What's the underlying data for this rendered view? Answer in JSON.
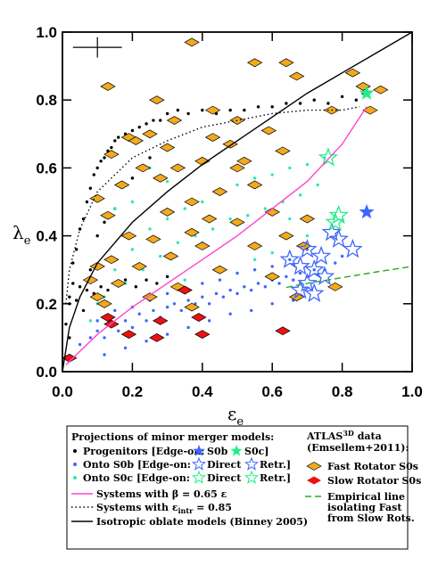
{
  "chart_data": {
    "type": "scatter",
    "xlabel": {
      "symbol": "ε",
      "subscript": "e"
    },
    "ylabel": {
      "symbol": "λ",
      "subscript": "e"
    },
    "xlim": [
      0,
      1
    ],
    "ylim": [
      0,
      1
    ],
    "xticks": [
      {
        "value": 0,
        "label": "0.0"
      },
      0.2,
      0.4,
      0.6,
      0.8,
      {
        "value": 1,
        "label": "1.0"
      }
    ],
    "yticks": [
      {
        "value": 0,
        "label": "0.0"
      },
      0.2,
      0.4,
      0.6,
      0.8,
      {
        "value": 1,
        "label": "1.0"
      }
    ],
    "error_cross": {
      "x": 0.1,
      "y": 0.955,
      "xerr": 0.07,
      "yerr": 0.03
    },
    "series": [
      {
        "marker": "dot",
        "color": "#000000",
        "x": [
          0.02,
          0.03,
          0.04,
          0.05,
          0.06,
          0.07,
          0.08,
          0.09,
          0.1,
          0.11,
          0.12,
          0.13,
          0.14,
          0.15,
          0.16,
          0.18,
          0.2,
          0.22,
          0.24,
          0.26,
          0.28,
          0.3,
          0.33,
          0.36,
          0.4,
          0.44,
          0.48,
          0.52,
          0.56,
          0.6,
          0.64,
          0.68,
          0.72,
          0.76,
          0.8,
          0.84,
          0.86,
          0.03,
          0.05,
          0.07,
          0.09,
          0.11,
          0.13,
          0.15,
          0.18,
          0.21,
          0.24,
          0.27,
          0.3,
          0.02,
          0.04,
          0.06,
          0.08,
          0.1,
          0.12,
          0.15,
          0.2,
          0.25,
          0.01,
          0.02
        ],
        "y": [
          0.2,
          0.32,
          0.36,
          0.42,
          0.45,
          0.5,
          0.54,
          0.58,
          0.6,
          0.62,
          0.63,
          0.65,
          0.66,
          0.68,
          0.69,
          0.7,
          0.71,
          0.72,
          0.73,
          0.74,
          0.74,
          0.76,
          0.77,
          0.76,
          0.77,
          0.76,
          0.77,
          0.77,
          0.78,
          0.78,
          0.79,
          0.79,
          0.8,
          0.79,
          0.81,
          0.8,
          0.82,
          0.26,
          0.25,
          0.24,
          0.23,
          0.25,
          0.24,
          0.26,
          0.27,
          0.25,
          0.27,
          0.26,
          0.28,
          0.22,
          0.21,
          0.18,
          0.3,
          0.4,
          0.44,
          0.48,
          0.57,
          0.63,
          0.14,
          0.1
        ]
      },
      {
        "marker": "dot",
        "color": "#3f66ff",
        "x": [
          0.05,
          0.08,
          0.1,
          0.12,
          0.14,
          0.16,
          0.18,
          0.2,
          0.22,
          0.24,
          0.26,
          0.28,
          0.3,
          0.32,
          0.34,
          0.36,
          0.38,
          0.4,
          0.42,
          0.44,
          0.46,
          0.48,
          0.5,
          0.52,
          0.54,
          0.56,
          0.58,
          0.6,
          0.62,
          0.64,
          0.66,
          0.68,
          0.7,
          0.72,
          0.75,
          0.78,
          0.8,
          0.1,
          0.15,
          0.2,
          0.25,
          0.3,
          0.35,
          0.4,
          0.45,
          0.5,
          0.55,
          0.6,
          0.65,
          0.7,
          0.12,
          0.18,
          0.24,
          0.3,
          0.36,
          0.42,
          0.48,
          0.54,
          0.6,
          0.66
        ],
        "y": [
          0.08,
          0.1,
          0.12,
          0.1,
          0.14,
          0.12,
          0.15,
          0.13,
          0.17,
          0.15,
          0.18,
          0.16,
          0.19,
          0.2,
          0.18,
          0.21,
          0.2,
          0.22,
          0.2,
          0.23,
          0.22,
          0.24,
          0.23,
          0.25,
          0.24,
          0.26,
          0.25,
          0.27,
          0.26,
          0.28,
          0.27,
          0.29,
          0.28,
          0.3,
          0.3,
          0.32,
          0.34,
          0.15,
          0.18,
          0.19,
          0.21,
          0.23,
          0.24,
          0.26,
          0.27,
          0.29,
          0.3,
          0.31,
          0.33,
          0.36,
          0.05,
          0.07,
          0.09,
          0.11,
          0.13,
          0.15,
          0.17,
          0.18,
          0.2,
          0.21
        ]
      },
      {
        "marker": "dot",
        "color": "#2ee8b0",
        "x": [
          0.12,
          0.15,
          0.18,
          0.2,
          0.23,
          0.25,
          0.28,
          0.3,
          0.33,
          0.35,
          0.38,
          0.4,
          0.43,
          0.45,
          0.48,
          0.5,
          0.53,
          0.55,
          0.58,
          0.6,
          0.63,
          0.65,
          0.68,
          0.7,
          0.73,
          0.75,
          0.2,
          0.3,
          0.4,
          0.5,
          0.6,
          0.7,
          0.25,
          0.35,
          0.45,
          0.55,
          0.65,
          0.08,
          0.1,
          0.15
        ],
        "y": [
          0.22,
          0.3,
          0.26,
          0.36,
          0.3,
          0.42,
          0.34,
          0.45,
          0.38,
          0.48,
          0.4,
          0.5,
          0.42,
          0.53,
          0.45,
          0.55,
          0.46,
          0.57,
          0.48,
          0.58,
          0.5,
          0.6,
          0.52,
          0.61,
          0.55,
          0.63,
          0.5,
          0.56,
          0.38,
          0.6,
          0.35,
          0.4,
          0.6,
          0.27,
          0.3,
          0.33,
          0.45,
          0.15,
          0.2,
          0.48
        ]
      },
      {
        "marker": "diamond",
        "color": "#f2a91c",
        "x": [
          0.37,
          0.55,
          0.64,
          0.67,
          0.83,
          0.86,
          0.91,
          0.88,
          0.13,
          0.27,
          0.32,
          0.5,
          0.43,
          0.19,
          0.25,
          0.21,
          0.3,
          0.43,
          0.48,
          0.59,
          0.77,
          0.14,
          0.23,
          0.33,
          0.4,
          0.52,
          0.63,
          0.5,
          0.28,
          0.17,
          0.1,
          0.13,
          0.3,
          0.37,
          0.42,
          0.45,
          0.55,
          0.6,
          0.7,
          0.5,
          0.37,
          0.26,
          0.19,
          0.14,
          0.22,
          0.1,
          0.08,
          0.16,
          0.31,
          0.4,
          0.55,
          0.64,
          0.69,
          0.33,
          0.45,
          0.6,
          0.67,
          0.78,
          0.12,
          0.25,
          0.37,
          0.1
        ],
        "y": [
          0.97,
          0.91,
          0.91,
          0.87,
          0.88,
          0.84,
          0.83,
          0.77,
          0.84,
          0.8,
          0.74,
          0.74,
          0.77,
          0.69,
          0.7,
          0.68,
          0.66,
          0.69,
          0.67,
          0.71,
          0.77,
          0.64,
          0.6,
          0.6,
          0.62,
          0.62,
          0.65,
          0.6,
          0.57,
          0.55,
          0.51,
          0.46,
          0.47,
          0.5,
          0.45,
          0.53,
          0.55,
          0.47,
          0.45,
          0.44,
          0.41,
          0.39,
          0.4,
          0.33,
          0.31,
          0.31,
          0.27,
          0.26,
          0.34,
          0.37,
          0.37,
          0.4,
          0.37,
          0.25,
          0.3,
          0.28,
          0.22,
          0.25,
          0.2,
          0.22,
          0.19,
          0.22
        ]
      },
      {
        "marker": "diamond",
        "color": "#ee1111",
        "x": [
          0.02,
          0.13,
          0.19,
          0.14,
          0.27,
          0.28,
          0.35,
          0.39,
          0.4,
          0.63
        ],
        "y": [
          0.04,
          0.16,
          0.11,
          0.14,
          0.1,
          0.15,
          0.24,
          0.16,
          0.11,
          0.12
        ]
      },
      {
        "marker": "star",
        "color": "#3f66ff",
        "x": [
          0.87
        ],
        "y": [
          0.47
        ]
      },
      {
        "marker": "star",
        "color": "#22ee88",
        "x": [
          0.87
        ],
        "y": [
          0.82
        ]
      },
      {
        "marker": "open-star",
        "color": "#3f66ff",
        "x": [
          0.65,
          0.68,
          0.7,
          0.72,
          0.74,
          0.7,
          0.68,
          0.75,
          0.77,
          0.83,
          0.79,
          0.72
        ],
        "y": [
          0.33,
          0.31,
          0.36,
          0.3,
          0.34,
          0.26,
          0.24,
          0.28,
          0.41,
          0.36,
          0.39,
          0.23
        ]
      },
      {
        "marker": "open-star",
        "color": "#22ee88",
        "x": [
          0.76,
          0.79,
          0.78
        ],
        "y": [
          0.63,
          0.46,
          0.44
        ]
      },
      {
        "marker": "line",
        "style": "solid",
        "color": "#ff44cc",
        "x": [
          0.01,
          0.1,
          0.2,
          0.3,
          0.4,
          0.5,
          0.6,
          0.7,
          0.8,
          0.87
        ],
        "y": [
          0.02,
          0.11,
          0.19,
          0.26,
          0.33,
          0.4,
          0.48,
          0.56,
          0.67,
          0.78
        ]
      },
      {
        "marker": "line",
        "style": "dotted",
        "color": "#000000",
        "x": [
          0.01,
          0.02,
          0.05,
          0.1,
          0.2,
          0.3,
          0.4,
          0.5,
          0.6,
          0.7,
          0.8,
          0.85
        ],
        "y": [
          0.2,
          0.3,
          0.42,
          0.53,
          0.63,
          0.68,
          0.72,
          0.74,
          0.76,
          0.77,
          0.77,
          0.78
        ]
      },
      {
        "marker": "line",
        "style": "solid",
        "color": "#000000",
        "x": [
          0,
          0.02,
          0.05,
          0.1,
          0.2,
          0.3,
          0.4,
          0.5,
          0.6,
          0.7,
          0.8,
          0.9,
          1.0
        ],
        "y": [
          0,
          0.13,
          0.22,
          0.32,
          0.44,
          0.53,
          0.61,
          0.68,
          0.75,
          0.82,
          0.88,
          0.94,
          1.0
        ]
      },
      {
        "marker": "line",
        "style": "dashed",
        "color": "#22aa22",
        "x": [
          0.64,
          0.7,
          0.8,
          0.9,
          1.0
        ],
        "y": [
          0.248,
          0.26,
          0.277,
          0.294,
          0.31
        ]
      }
    ],
    "legend": {
      "heading": "Projections of minor merger models:",
      "progenitors": [
        "Progenitors [Edge-on:",
        "S0b",
        "S0c]"
      ],
      "onto_s0b": [
        "Onto S0b [Edge-on:",
        "Direct",
        "Retr.]"
      ],
      "onto_s0c": [
        "Onto S0c [Edge-on:",
        "Direct",
        "Retr.]"
      ],
      "beta": "Systems with β = 0.65 ε",
      "eintr": [
        "Systems with ε",
        "intr",
        " = 0.85"
      ],
      "binney": "Isotropic oblate models (Binney 2005)",
      "atlas": [
        "ATLAS",
        "3D",
        " data",
        "(Emsellem+2011):"
      ],
      "fast": "Fast Rotator S0s",
      "slow": "Slow Rotator S0s",
      "empirical": [
        "Empirical line",
        "isolating Fast",
        "from Slow Rots."
      ]
    }
  }
}
